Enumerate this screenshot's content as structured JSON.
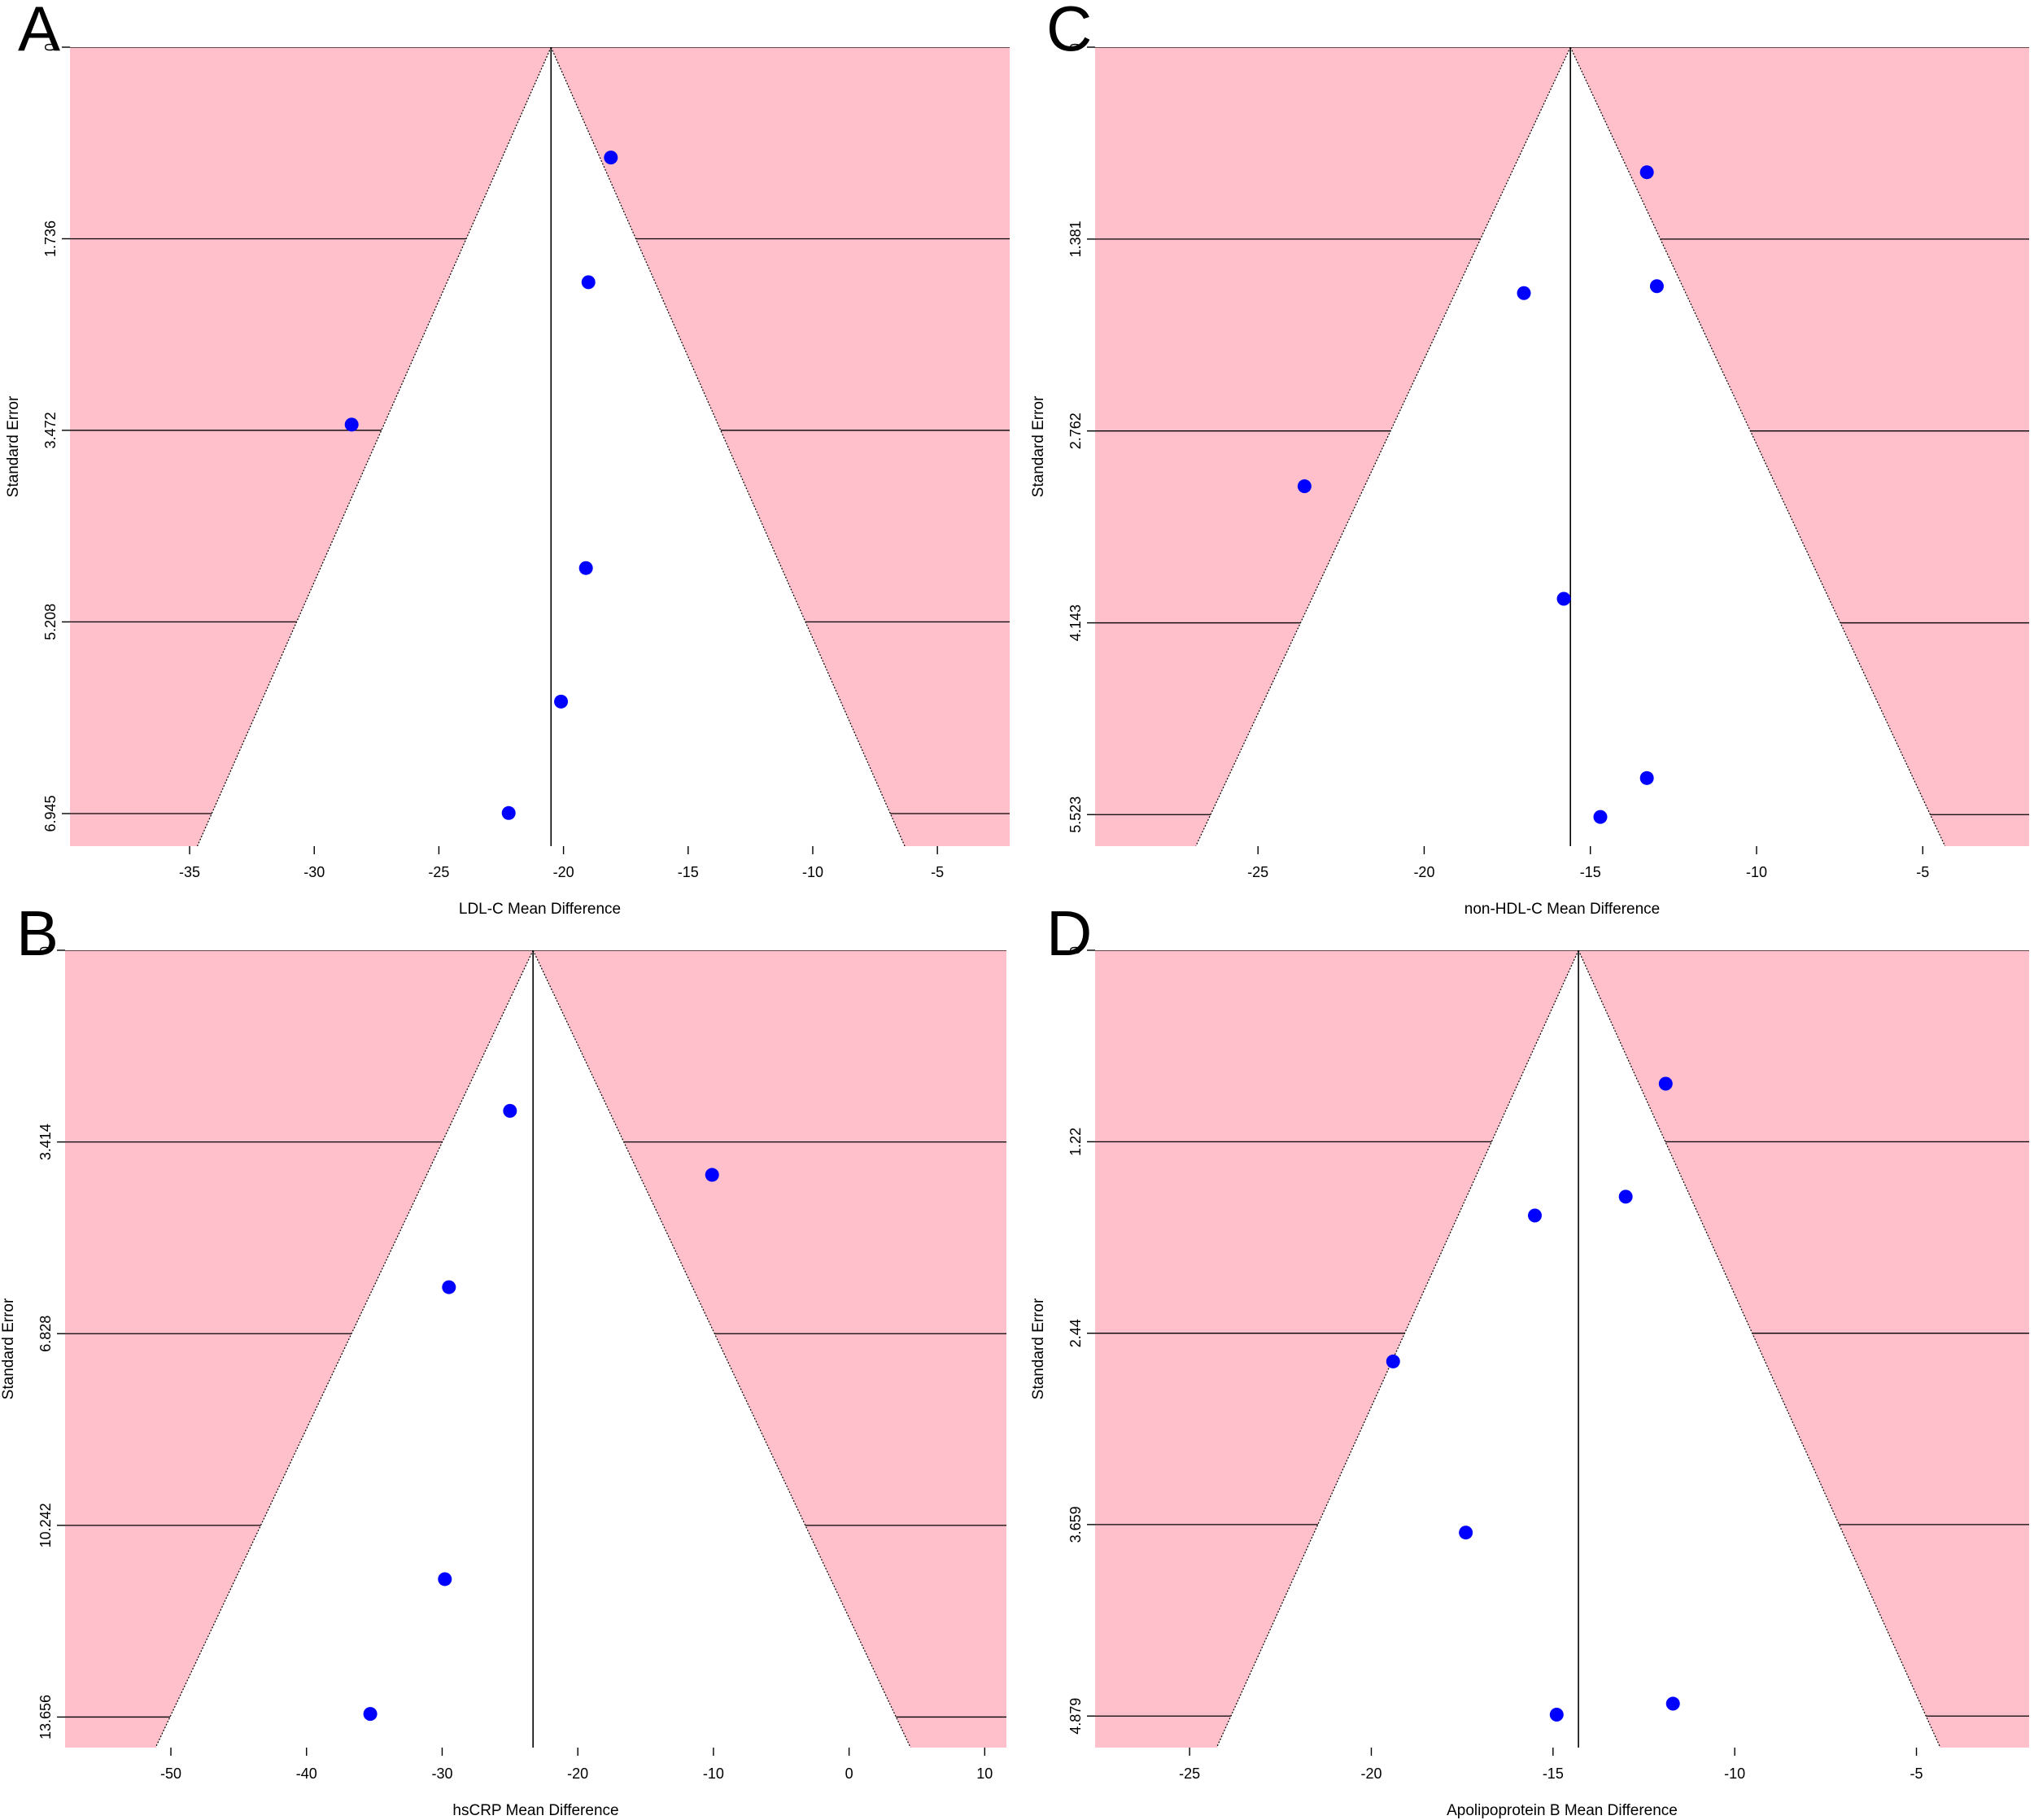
{
  "colors": {
    "funnel_region": "#ffc0cb",
    "point": "#0000ff",
    "line": "#000000",
    "background": "#ffffff"
  },
  "chart_data": [
    {
      "panel": "A",
      "type": "scatter",
      "xlabel": "LDL-C Mean Difference",
      "ylabel": "Standard Error",
      "x_ticks": [
        -35,
        -30,
        -25,
        -20,
        -15,
        -10,
        -5
      ],
      "x_tick_labels": [
        "-35",
        "-30",
        "-25",
        "-20",
        "-15",
        "-10",
        "-5"
      ],
      "y_ticks": [
        0,
        1.736,
        3.472,
        5.208,
        6.945
      ],
      "y_tick_labels": [
        "0",
        "1.736",
        "3.472",
        "5.208",
        "6.945"
      ],
      "xlim": [
        -39.8,
        -2.1
      ],
      "ylim": [
        0,
        7.24
      ],
      "y_inverted": true,
      "pooled_estimate": -20.5,
      "funnel_contour": "pooled ± 1.96 × SE",
      "points": [
        {
          "x": -18.1,
          "y": 1.0
        },
        {
          "x": -19.0,
          "y": 2.13
        },
        {
          "x": -28.5,
          "y": 3.42
        },
        {
          "x": -19.1,
          "y": 4.72
        },
        {
          "x": -20.1,
          "y": 5.93
        },
        {
          "x": -22.2,
          "y": 6.94
        }
      ]
    },
    {
      "panel": "C",
      "type": "scatter",
      "xlabel": "non-HDL-C Mean Difference",
      "ylabel": "Standard Error",
      "x_ticks": [
        -25,
        -20,
        -15,
        -10,
        -5
      ],
      "x_tick_labels": [
        "-25",
        "-20",
        "-15",
        "-10",
        "-5"
      ],
      "y_ticks": [
        0,
        1.381,
        2.762,
        4.143,
        5.523
      ],
      "y_tick_labels": [
        "0",
        "1.381",
        "2.762",
        "4.143",
        "5.523"
      ],
      "xlim": [
        -29.9,
        -1.8
      ],
      "ylim": [
        0,
        5.75
      ],
      "y_inverted": true,
      "pooled_estimate": -15.6,
      "funnel_contour": "pooled ± 1.96 × SE",
      "points": [
        {
          "x": -13.3,
          "y": 0.9
        },
        {
          "x": -17.0,
          "y": 1.77
        },
        {
          "x": -13.0,
          "y": 1.72
        },
        {
          "x": -23.6,
          "y": 3.16
        },
        {
          "x": -15.8,
          "y": 3.97
        },
        {
          "x": -13.3,
          "y": 5.26
        },
        {
          "x": -14.7,
          "y": 5.54
        }
      ]
    },
    {
      "panel": "B",
      "type": "scatter",
      "xlabel": "hsCRP Mean Difference",
      "ylabel": "Standard Error",
      "x_ticks": [
        -50,
        -40,
        -30,
        -20,
        -10,
        0,
        10
      ],
      "x_tick_labels": [
        "-50",
        "-40",
        "-30",
        "-20",
        "-10",
        "0",
        "10"
      ],
      "y_ticks": [
        0,
        3.414,
        6.828,
        10.242,
        13.656
      ],
      "y_tick_labels": [
        "0",
        "3.414",
        "6.828",
        "10.242",
        "13.656"
      ],
      "xlim": [
        -57.8,
        11.6
      ],
      "ylim": [
        0,
        14.2
      ],
      "y_inverted": true,
      "pooled_estimate": -23.3,
      "funnel_contour": "pooled ± 1.96 × SE",
      "points": [
        {
          "x": -25.0,
          "y": 2.86
        },
        {
          "x": -10.1,
          "y": 4.0
        },
        {
          "x": -29.5,
          "y": 6.0
        },
        {
          "x": -29.8,
          "y": 11.2
        },
        {
          "x": -35.3,
          "y": 13.6
        }
      ]
    },
    {
      "panel": "D",
      "type": "scatter",
      "xlabel": "Apolipoprotein B Mean Difference",
      "ylabel": "Standard Error",
      "x_ticks": [
        -25,
        -20,
        -15,
        -10,
        -5
      ],
      "x_tick_labels": [
        "-25",
        "-20",
        "-15",
        "-10",
        "-5"
      ],
      "y_ticks": [
        0,
        1.22,
        2.44,
        3.659,
        4.879
      ],
      "y_tick_labels": [
        "0",
        "1.22",
        "2.44",
        "3.659",
        "4.879"
      ],
      "xlim": [
        -27.6,
        -1.9
      ],
      "ylim": [
        0,
        5.08
      ],
      "y_inverted": true,
      "pooled_estimate": -14.3,
      "funnel_contour": "pooled ± 1.96 × SE",
      "points": [
        {
          "x": -11.9,
          "y": 0.85
        },
        {
          "x": -13.0,
          "y": 1.57
        },
        {
          "x": -15.5,
          "y": 1.69
        },
        {
          "x": -19.4,
          "y": 2.62
        },
        {
          "x": -17.4,
          "y": 3.71
        },
        {
          "x": -11.7,
          "y": 4.8
        },
        {
          "x": -14.9,
          "y": 4.87
        }
      ]
    }
  ]
}
